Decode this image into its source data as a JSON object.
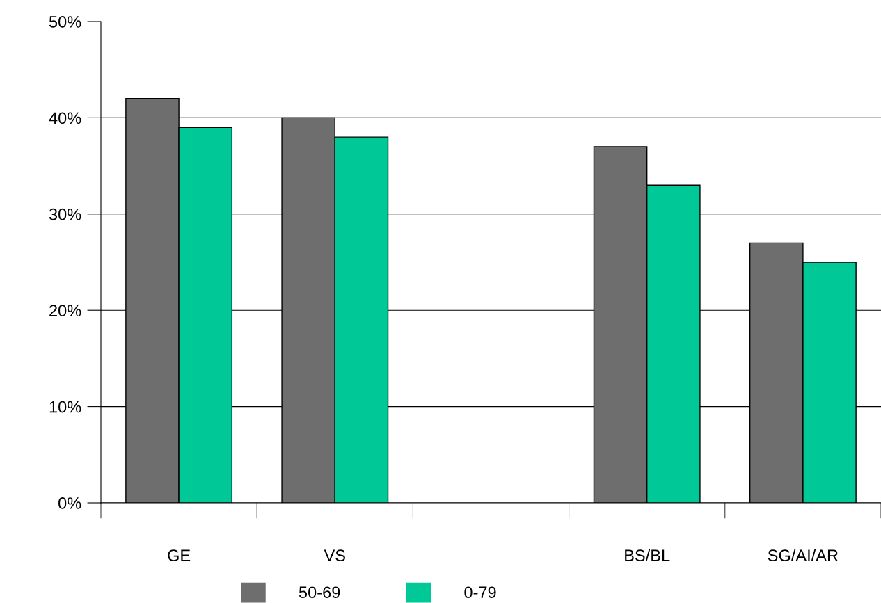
{
  "chart_data": {
    "type": "bar",
    "categories": [
      "GE",
      "VS",
      null,
      "BS/BL",
      "SG/AI/AR"
    ],
    "series": [
      {
        "name": "50-69",
        "color": "#6e6e6e",
        "values": [
          42,
          40,
          null,
          37,
          27
        ]
      },
      {
        "name": "0-79",
        "color": "#00c896",
        "values": [
          39,
          38,
          null,
          33,
          25
        ]
      }
    ],
    "ylim": [
      0,
      50
    ],
    "yticks": [
      {
        "value": 0,
        "label": "0%"
      },
      {
        "value": 10,
        "label": "10%"
      },
      {
        "value": 20,
        "label": "20%"
      },
      {
        "value": 30,
        "label": "30%"
      },
      {
        "value": 40,
        "label": "40%"
      },
      {
        "value": 50,
        "label": "50%"
      }
    ],
    "grid": "y",
    "legend": "bottom"
  }
}
